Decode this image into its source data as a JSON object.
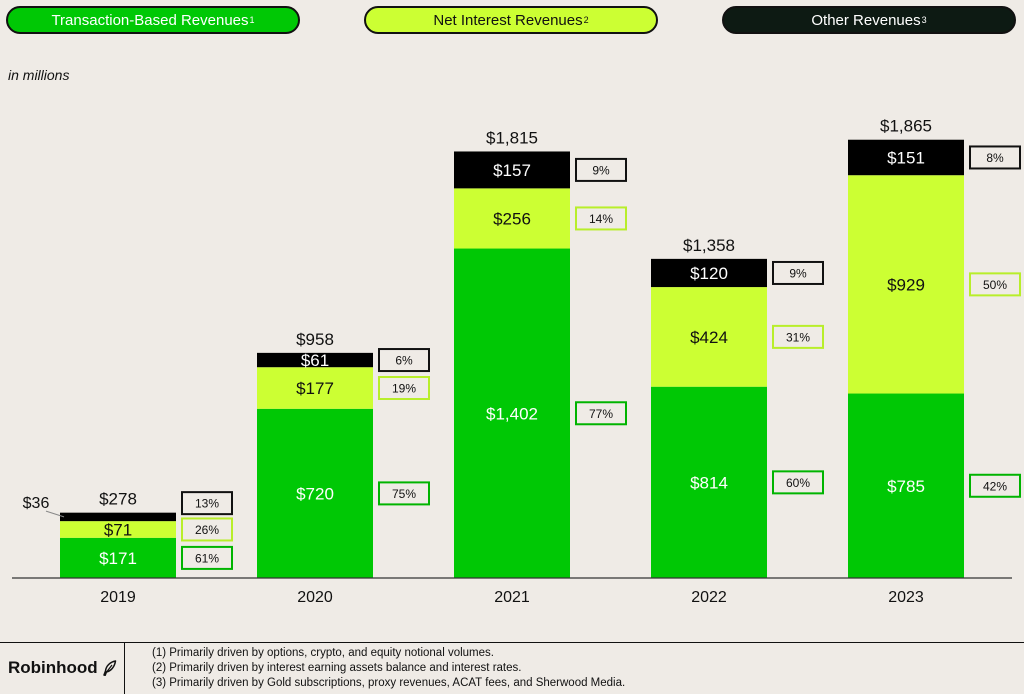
{
  "legend": [
    {
      "label": "Transaction-Based Revenues",
      "note": "1",
      "color": "#00c805",
      "text_color": "#ffffff"
    },
    {
      "label": "Net Interest Revenues",
      "note": "2",
      "color": "#ccff33",
      "text_color": "#111111"
    },
    {
      "label": "Other Revenues",
      "note": "3",
      "color": "#0d1a13",
      "text_color": "#ffffff"
    }
  ],
  "unit_note": "in millions",
  "chart_data": {
    "type": "bar",
    "stacked": true,
    "categories": [
      "2019",
      "2020",
      "2021",
      "2022",
      "2023"
    ],
    "series": [
      {
        "name": "Transaction-Based Revenues",
        "values": [
          171,
          720,
          1402,
          814,
          785
        ],
        "labels": [
          "$171",
          "$720",
          "$1,402",
          "$814",
          "$785"
        ],
        "shares": [
          "61%",
          "75%",
          "77%",
          "60%",
          "42%"
        ],
        "color": "#00c805"
      },
      {
        "name": "Net Interest Revenues",
        "values": [
          71,
          177,
          256,
          424,
          929
        ],
        "labels": [
          "$71",
          "$177",
          "$256",
          "$424",
          "$929"
        ],
        "shares": [
          "26%",
          "19%",
          "14%",
          "31%",
          "50%"
        ],
        "color": "#ccff33"
      },
      {
        "name": "Other Revenues",
        "values": [
          36,
          61,
          157,
          120,
          151
        ],
        "labels": [
          "$36",
          "$61",
          "$157",
          "$120",
          "$151"
        ],
        "shares": [
          "13%",
          "6%",
          "9%",
          "9%",
          "8%"
        ],
        "color": "#000000"
      }
    ],
    "totals": [
      "$278",
      "$958",
      "$1,815",
      "$1,358",
      "$1,865"
    ],
    "ylim": [
      0,
      2000
    ]
  },
  "footer": {
    "brand": "Robinhood",
    "brand_icon": "feather-icon",
    "notes": [
      "(1)   Primarily driven by options, crypto, and equity notional volumes.",
      "(2)   Primarily driven by interest earning assets balance and interest rates.",
      "(3)   Primarily driven by Gold subscriptions, proxy revenues, ACAT fees, and Sherwood Media."
    ]
  }
}
